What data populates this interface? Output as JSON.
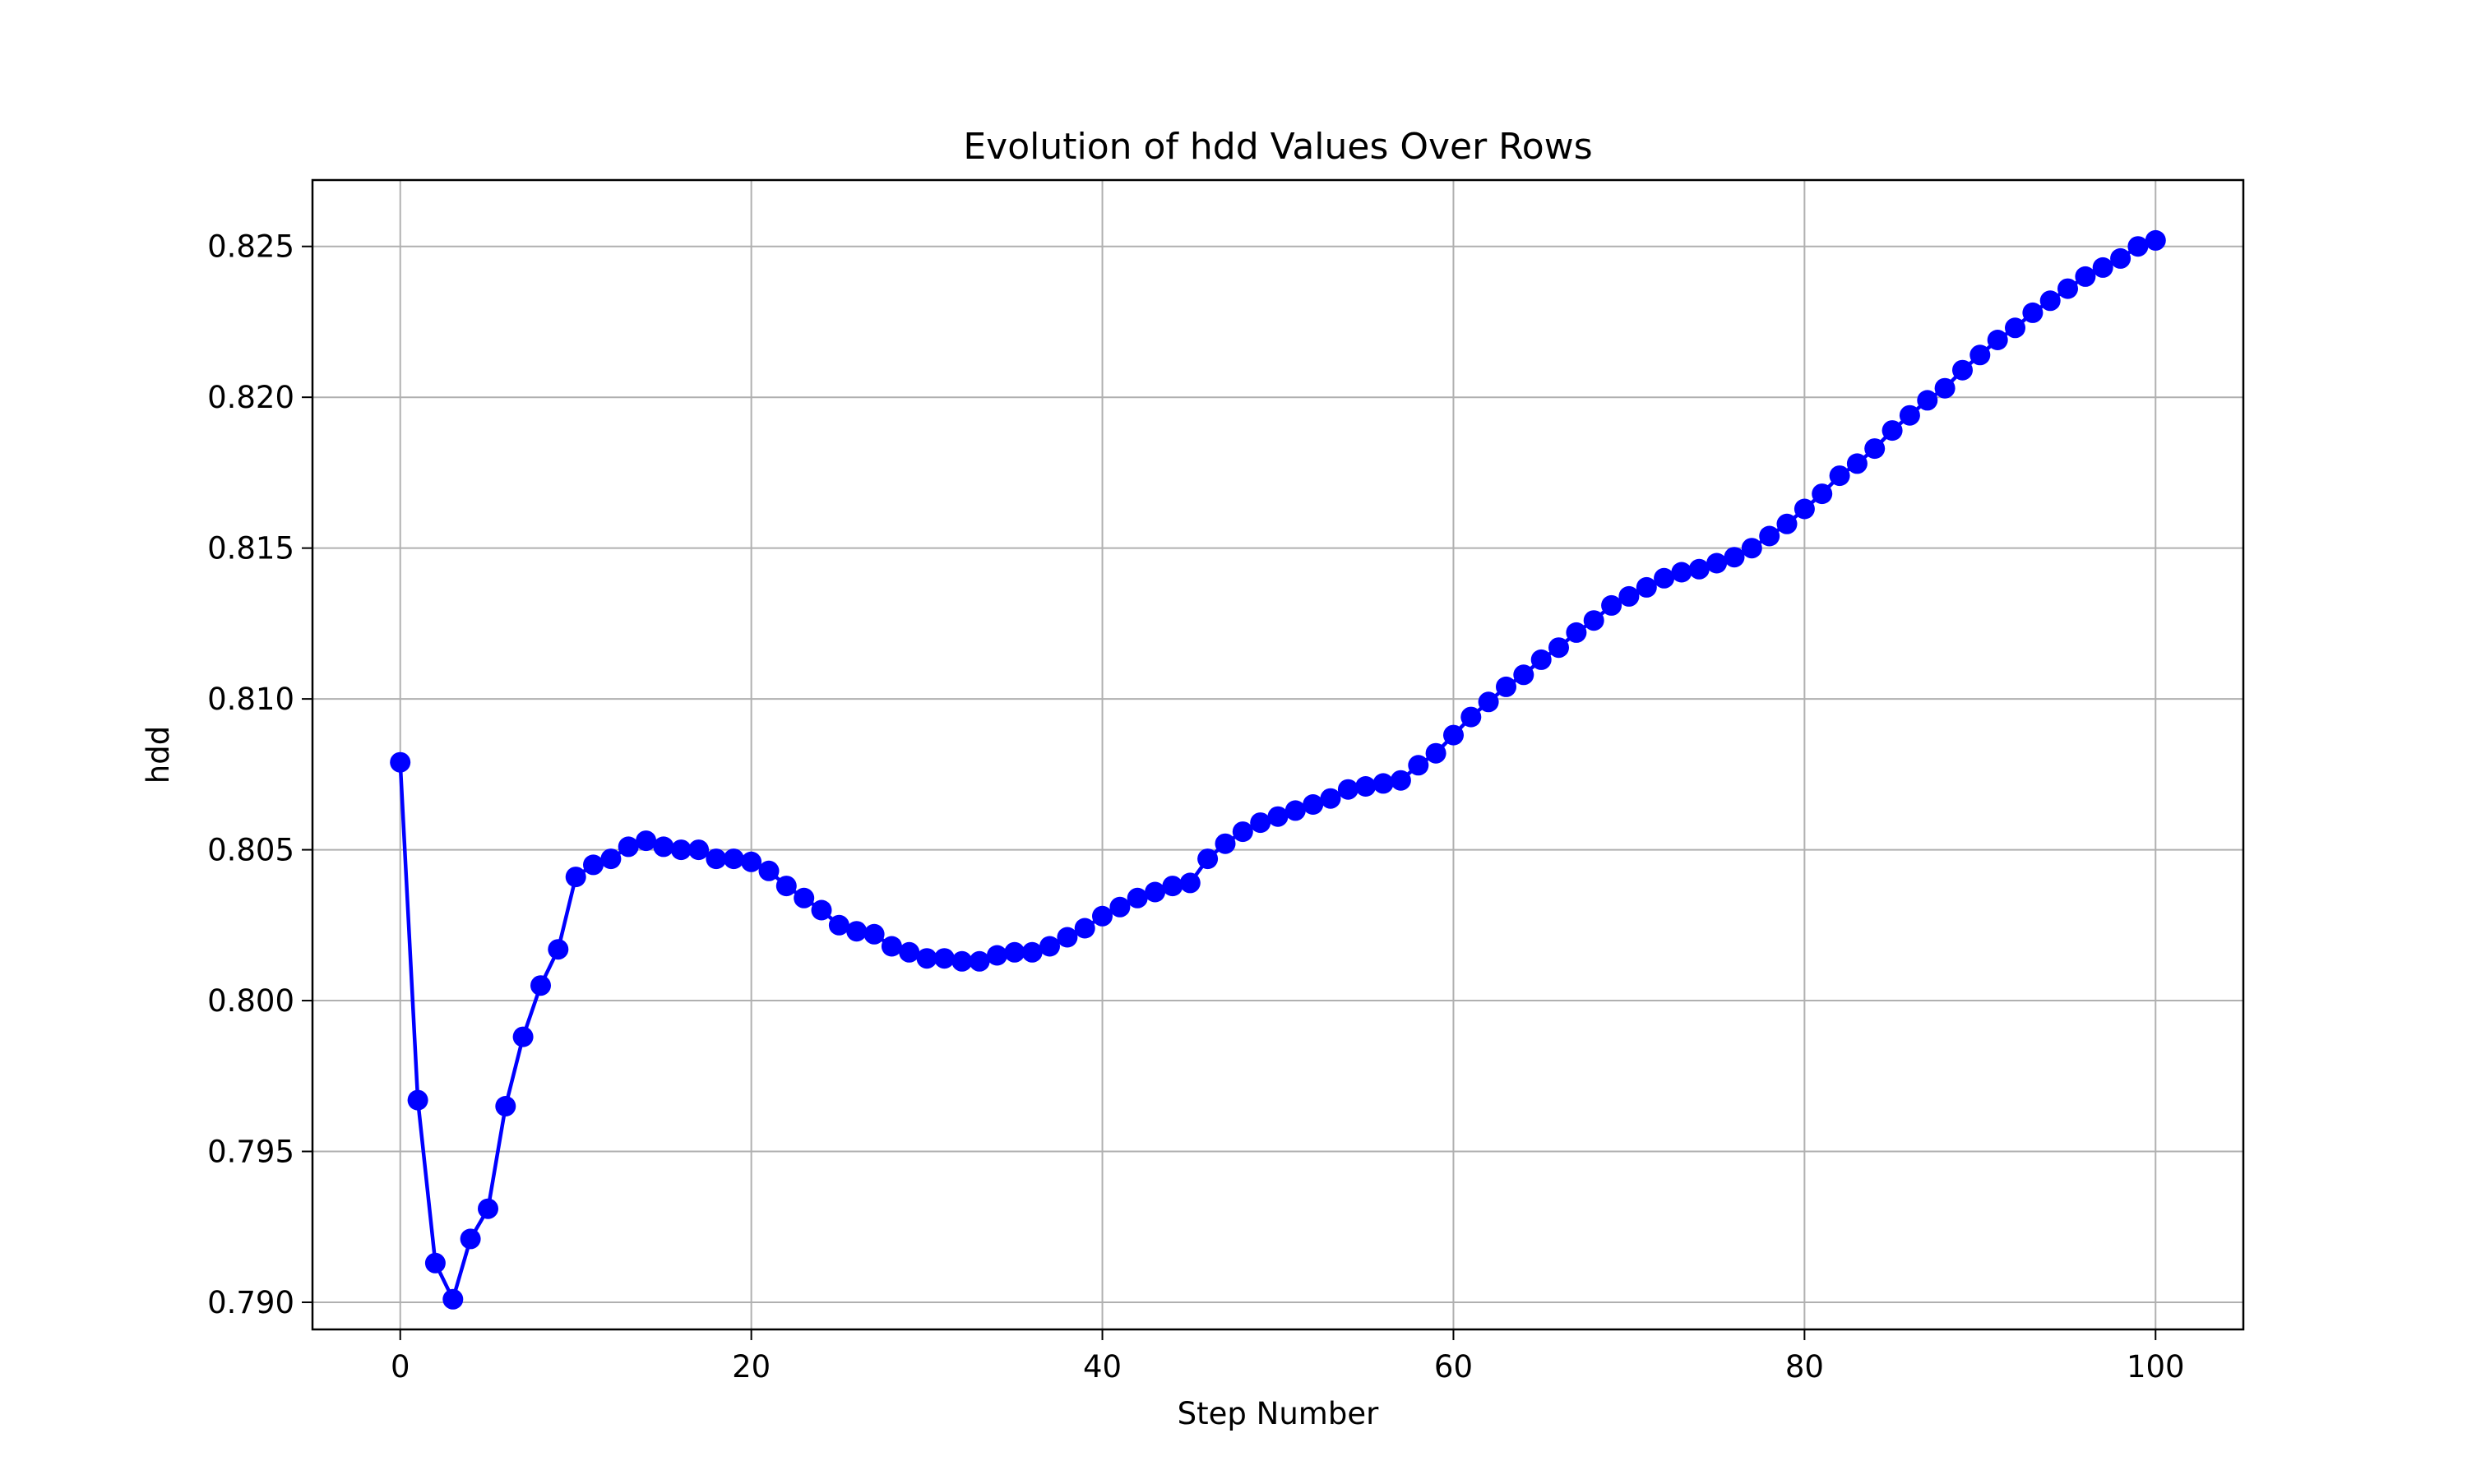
{
  "chart_data": {
    "type": "line",
    "title": "Evolution of hdd Values Over Rows",
    "xlabel": "Step Number",
    "ylabel": "hdd",
    "xlim": [
      -5,
      105
    ],
    "ylim": [
      0.7891,
      0.8272
    ],
    "xticks": [
      0,
      20,
      40,
      60,
      80,
      100
    ],
    "xtick_labels": [
      "0",
      "20",
      "40",
      "60",
      "80",
      "100"
    ],
    "yticks": [
      0.79,
      0.795,
      0.8,
      0.805,
      0.81,
      0.815,
      0.82,
      0.825
    ],
    "ytick_labels": [
      "0.790",
      "0.795",
      "0.800",
      "0.805",
      "0.810",
      "0.815",
      "0.820",
      "0.825"
    ],
    "grid": true,
    "legend": "none",
    "series": [
      {
        "color": "#0000ff",
        "marker": "circle",
        "x": [
          0,
          1,
          2,
          3,
          4,
          5,
          6,
          7,
          8,
          9,
          10,
          11,
          12,
          13,
          14,
          15,
          16,
          17,
          18,
          19,
          20,
          21,
          22,
          23,
          24,
          25,
          26,
          27,
          28,
          29,
          30,
          31,
          32,
          33,
          34,
          35,
          36,
          37,
          38,
          39,
          40,
          41,
          42,
          43,
          44,
          45,
          46,
          47,
          48,
          49,
          50,
          51,
          52,
          53,
          54,
          55,
          56,
          57,
          58,
          59,
          60,
          61,
          62,
          63,
          64,
          65,
          66,
          67,
          68,
          69,
          70,
          71,
          72,
          73,
          74,
          75,
          76,
          77,
          78,
          79,
          80,
          81,
          82,
          83,
          84,
          85,
          86,
          87,
          88,
          89,
          90,
          91,
          92,
          93,
          94,
          95,
          96,
          97,
          98,
          99,
          100
        ],
        "values": [
          0.8079,
          0.7967,
          0.7913,
          0.7901,
          0.7921,
          0.7931,
          0.7965,
          0.7988,
          0.8005,
          0.8017,
          0.8041,
          0.8045,
          0.8047,
          0.8051,
          0.8053,
          0.8051,
          0.805,
          0.805,
          0.8047,
          0.8047,
          0.8046,
          0.8043,
          0.8038,
          0.8034,
          0.803,
          0.8025,
          0.8023,
          0.8022,
          0.8018,
          0.8016,
          0.8014,
          0.8014,
          0.8013,
          0.8013,
          0.8015,
          0.8016,
          0.8016,
          0.8018,
          0.8021,
          0.8024,
          0.8028,
          0.8031,
          0.8034,
          0.8036,
          0.8038,
          0.8039,
          0.8047,
          0.8052,
          0.8056,
          0.8059,
          0.8061,
          0.8063,
          0.8065,
          0.8067,
          0.807,
          0.8071,
          0.8072,
          0.8073,
          0.8078,
          0.8082,
          0.8088,
          0.8094,
          0.8099,
          0.8104,
          0.8108,
          0.8113,
          0.8117,
          0.8122,
          0.8126,
          0.8131,
          0.8134,
          0.8137,
          0.814,
          0.8142,
          0.8143,
          0.8145,
          0.8147,
          0.815,
          0.8154,
          0.8158,
          0.8163,
          0.8168,
          0.8174,
          0.8178,
          0.8183,
          0.8189,
          0.8194,
          0.8199,
          0.8203,
          0.8209,
          0.8214,
          0.8219,
          0.8223,
          0.8228,
          0.8232,
          0.8236,
          0.824,
          0.8243,
          0.8246,
          0.825,
          0.8252
        ]
      }
    ]
  }
}
